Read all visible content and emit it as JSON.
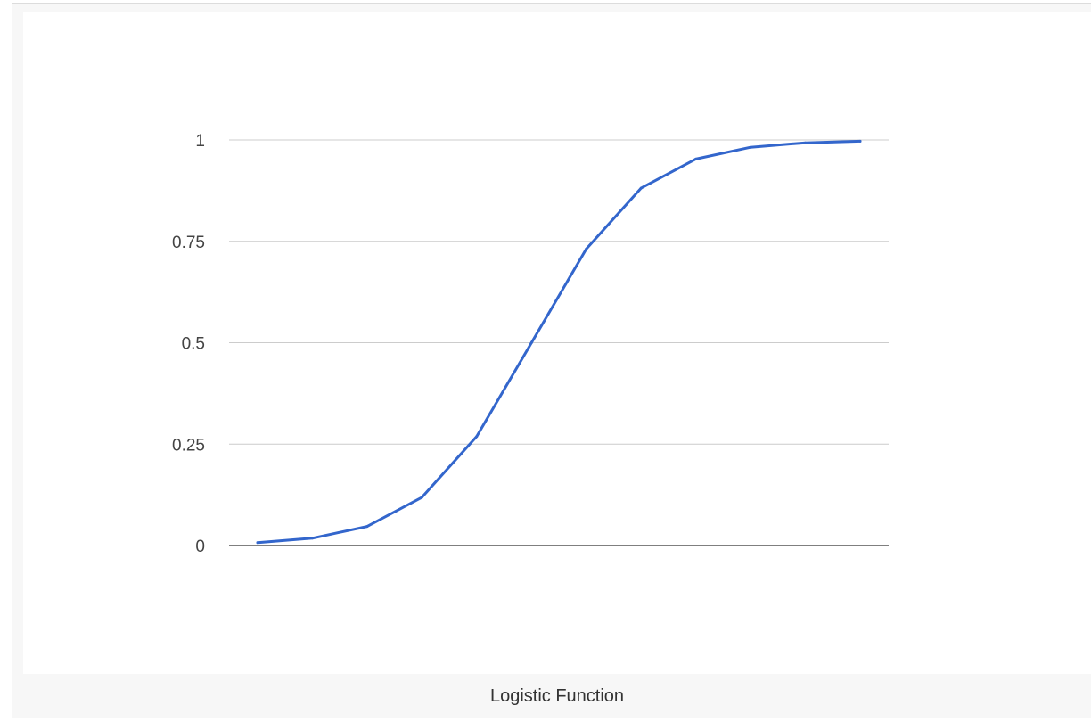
{
  "caption": "Logistic Function",
  "colors": {
    "line": "#3366cc",
    "grid": "#cccccc",
    "baseline": "#333333"
  },
  "chart_data": {
    "type": "line",
    "title": "",
    "xlabel": "",
    "ylabel": "",
    "ylim": [
      0,
      1
    ],
    "yticks": [
      "0",
      "0.25",
      "0.5",
      "0.75",
      "1"
    ],
    "grid": true,
    "legend": "none",
    "series": [
      {
        "values": [
          0.007,
          0.018,
          0.047,
          0.119,
          0.269,
          0.5,
          0.731,
          0.881,
          0.953,
          0.982,
          0.993,
          0.997
        ]
      }
    ]
  }
}
